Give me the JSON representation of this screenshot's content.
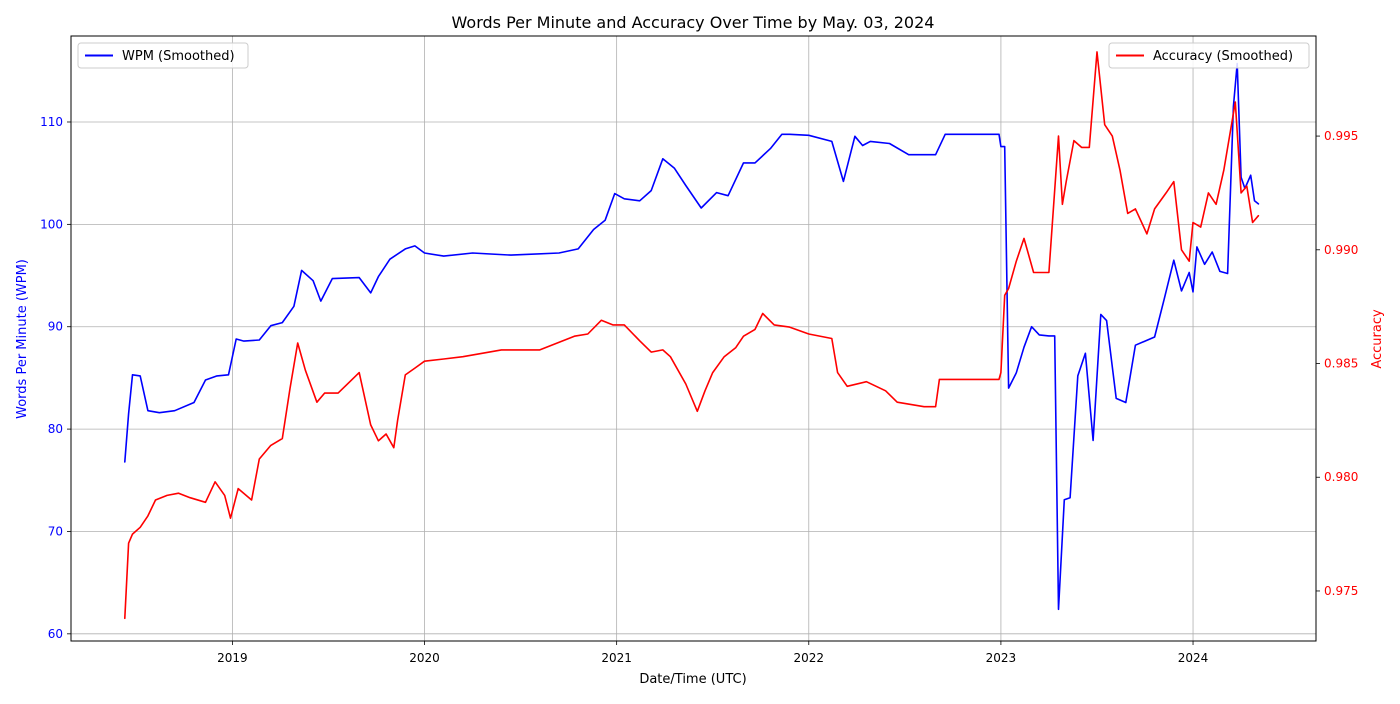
{
  "chart_data": {
    "type": "line",
    "title": "Words Per Minute and Accuracy Over Time by May. 03, 2024",
    "xlabel": "Date/Time (UTC)",
    "ylabel_left": "Words Per Minute (WPM)",
    "ylabel_right": "Accuracy",
    "grid": true,
    "x_tick_labels": [
      "2019",
      "2020",
      "2021",
      "2022",
      "2023",
      "2024"
    ],
    "x_ticks": [
      2019,
      2020,
      2021,
      2022,
      2023,
      2024
    ],
    "xlim": [
      2018.16,
      2024.64
    ],
    "y_left_ticks": [
      60,
      70,
      80,
      90,
      100,
      110
    ],
    "y_left_tick_labels": [
      "60",
      "70",
      "80",
      "90",
      "100",
      "110"
    ],
    "y_left_lim": [
      59.3,
      118.4
    ],
    "y_right_ticks": [
      0.975,
      0.98,
      0.985,
      0.99,
      0.995
    ],
    "y_right_tick_labels": [
      "0.975",
      "0.980",
      "0.985",
      "0.990",
      "0.995"
    ],
    "y_right_lim": [
      0.9728,
      0.9994
    ],
    "colors": {
      "wpm": "#0000ff",
      "accuracy": "#ff0000"
    },
    "series": [
      {
        "name": "WPM (Smoothed)",
        "axis": "left",
        "color": "#0000ff",
        "x": [
          2018.44,
          2018.46,
          2018.48,
          2018.52,
          2018.56,
          2018.62,
          2018.7,
          2018.8,
          2018.86,
          2018.92,
          2018.98,
          2019.02,
          2019.06,
          2019.14,
          2019.2,
          2019.26,
          2019.32,
          2019.36,
          2019.42,
          2019.46,
          2019.52,
          2019.66,
          2019.72,
          2019.76,
          2019.82,
          2019.9,
          2019.95,
          2020.0,
          2020.1,
          2020.25,
          2020.45,
          2020.7,
          2020.8,
          2020.88,
          2020.94,
          2020.99,
          2021.04,
          2021.12,
          2021.18,
          2021.24,
          2021.3,
          2021.36,
          2021.44,
          2021.52,
          2021.58,
          2021.66,
          2021.72,
          2021.8,
          2021.86,
          2021.9,
          2022.0,
          2022.12,
          2022.18,
          2022.24,
          2022.28,
          2022.32,
          2022.42,
          2022.52,
          2022.66,
          2022.71,
          2022.9,
          2022.99,
          2023.0,
          2023.02,
          2023.04,
          2023.08,
          2023.12,
          2023.16,
          2023.2,
          2023.25,
          2023.28,
          2023.3,
          2023.33,
          2023.36,
          2023.4,
          2023.44,
          2023.48,
          2023.52,
          2023.55,
          2023.6,
          2023.65,
          2023.7,
          2023.75,
          2023.8,
          2023.85,
          2023.9,
          2023.94,
          2023.98,
          2024.0,
          2024.02,
          2024.06,
          2024.1,
          2024.14,
          2024.18,
          2024.21,
          2024.23,
          2024.25,
          2024.27,
          2024.3,
          2024.32,
          2024.34
        ],
        "values": [
          76.8,
          81.5,
          85.3,
          85.2,
          81.8,
          81.6,
          81.8,
          82.6,
          84.8,
          85.2,
          85.3,
          88.8,
          88.6,
          88.7,
          90.1,
          90.4,
          92.0,
          95.5,
          94.5,
          92.5,
          94.7,
          94.8,
          93.3,
          94.9,
          96.6,
          97.6,
          97.9,
          97.2,
          96.9,
          97.2,
          97.0,
          97.2,
          97.6,
          99.5,
          100.4,
          103.0,
          102.5,
          102.3,
          103.3,
          106.4,
          105.5,
          103.8,
          101.6,
          103.1,
          102.8,
          106.0,
          106.0,
          107.4,
          108.8,
          108.8,
          108.7,
          108.1,
          104.2,
          108.6,
          107.7,
          108.1,
          107.9,
          106.8,
          106.8,
          108.8,
          108.8,
          108.8,
          107.6,
          107.6,
          84.0,
          85.5,
          88.0,
          90.0,
          89.2,
          89.1,
          89.1,
          62.4,
          73.1,
          73.3,
          85.2,
          87.4,
          78.9,
          91.2,
          90.6,
          83.0,
          82.6,
          88.2,
          88.6,
          89.0,
          92.7,
          96.5,
          93.5,
          95.3,
          93.4,
          97.8,
          96.1,
          97.3,
          95.4,
          95.2,
          111.5,
          115.7,
          104.6,
          103.5,
          104.8,
          102.3,
          102.0
        ]
      },
      {
        "name": "Accuracy (Smoothed)",
        "axis": "right",
        "color": "#ff0000",
        "x": [
          2018.44,
          2018.46,
          2018.48,
          2018.52,
          2018.56,
          2018.6,
          2018.66,
          2018.72,
          2018.78,
          2018.86,
          2018.91,
          2018.96,
          2018.99,
          2019.03,
          2019.1,
          2019.14,
          2019.2,
          2019.26,
          2019.3,
          2019.34,
          2019.38,
          2019.44,
          2019.48,
          2019.55,
          2019.66,
          2019.72,
          2019.76,
          2019.8,
          2019.84,
          2019.86,
          2019.9,
          2019.95,
          2020.0,
          2020.1,
          2020.2,
          2020.4,
          2020.6,
          2020.78,
          2020.85,
          2020.92,
          2020.98,
          2021.04,
          2021.12,
          2021.18,
          2021.24,
          2021.28,
          2021.36,
          2021.42,
          2021.46,
          2021.5,
          2021.56,
          2021.62,
          2021.66,
          2021.72,
          2021.76,
          2021.82,
          2021.9,
          2022.0,
          2022.12,
          2022.15,
          2022.2,
          2022.3,
          2022.4,
          2022.46,
          2022.6,
          2022.66,
          2022.68,
          2022.99,
          2023.0,
          2023.02,
          2023.04,
          2023.08,
          2023.12,
          2023.17,
          2023.2,
          2023.25,
          2023.3,
          2023.32,
          2023.34,
          2023.38,
          2023.42,
          2023.46,
          2023.5,
          2023.54,
          2023.58,
          2023.62,
          2023.66,
          2023.7,
          2023.76,
          2023.8,
          2023.86,
          2023.9,
          2023.94,
          2023.98,
          2024.0,
          2024.04,
          2024.08,
          2024.12,
          2024.16,
          2024.2,
          2024.22,
          2024.25,
          2024.28,
          2024.31,
          2024.34
        ],
        "values": [
          0.9738,
          0.9771,
          0.9775,
          0.9778,
          0.9783,
          0.979,
          0.9792,
          0.9793,
          0.9791,
          0.9789,
          0.9798,
          0.9792,
          0.9782,
          0.9795,
          0.979,
          0.9808,
          0.9814,
          0.9817,
          0.9839,
          0.9859,
          0.9847,
          0.9833,
          0.9837,
          0.9837,
          0.9846,
          0.9823,
          0.9816,
          0.9819,
          0.9813,
          0.9825,
          0.9845,
          0.9848,
          0.9851,
          0.9852,
          0.9853,
          0.9856,
          0.9856,
          0.9862,
          0.9863,
          0.9869,
          0.9867,
          0.9867,
          0.986,
          0.9855,
          0.9856,
          0.9853,
          0.9841,
          0.9829,
          0.9838,
          0.9846,
          0.9853,
          0.9857,
          0.9862,
          0.9865,
          0.9872,
          0.9867,
          0.9866,
          0.9863,
          0.9861,
          0.9846,
          0.984,
          0.9842,
          0.9838,
          0.9833,
          0.9831,
          0.9831,
          0.9843,
          0.9843,
          0.9846,
          0.988,
          0.9883,
          0.9895,
          0.9905,
          0.989,
          0.989,
          0.989,
          0.995,
          0.992,
          0.993,
          0.9948,
          0.9945,
          0.9945,
          0.9987,
          0.9955,
          0.995,
          0.9935,
          0.9916,
          0.9918,
          0.9907,
          0.9918,
          0.9925,
          0.993,
          0.99,
          0.9895,
          0.9912,
          0.991,
          0.9925,
          0.992,
          0.9935,
          0.9955,
          0.9965,
          0.9925,
          0.9928,
          0.9912,
          0.9915
        ]
      }
    ],
    "legend": [
      {
        "label": "WPM (Smoothed)",
        "color": "#0000ff",
        "placement": "upper-left"
      },
      {
        "label": "Accuracy (Smoothed)",
        "color": "#ff0000",
        "placement": "upper-right"
      }
    ]
  }
}
